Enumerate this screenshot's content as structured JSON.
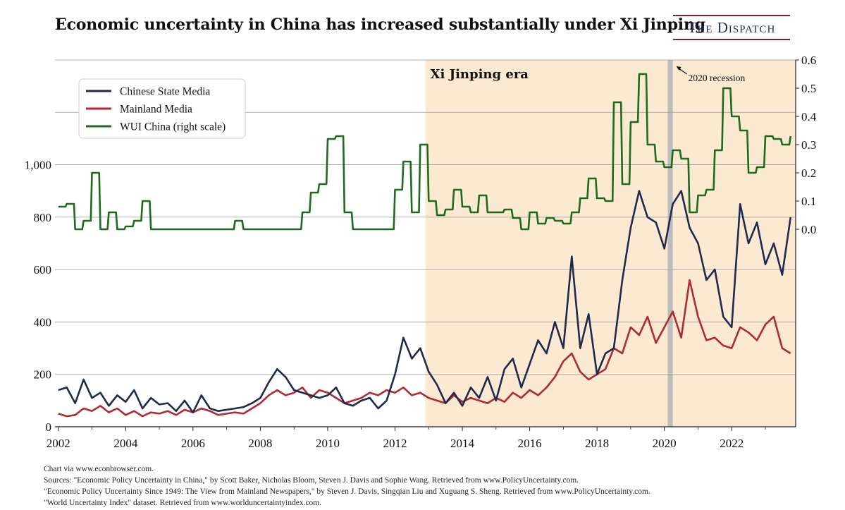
{
  "header": {
    "title": "Economic uncertainty in China has increased substantially under Xi Jinping",
    "brand": "The Dispatch"
  },
  "colors": {
    "state_media": "#1f2a4d",
    "mainland_media": "#b02a32",
    "wui": "#1e6b1e",
    "xi_era_shade": "#fbe9d2",
    "recession_shade": "#bdbdbd"
  },
  "chart_data": {
    "type": "line",
    "title": "Economic uncertainty in China has increased substantially under Xi Jinping",
    "x_ticks": [
      "2002",
      "2004",
      "2006",
      "2008",
      "2010",
      "2012",
      "2014",
      "2016",
      "2018",
      "2020",
      "2022"
    ],
    "x_tick_values": [
      2002,
      2004,
      2006,
      2008,
      2010,
      2012,
      2014,
      2016,
      2018,
      2020,
      2022
    ],
    "xlim": [
      2001.9,
      2023.9
    ],
    "left_axis": {
      "ticks": [
        "0",
        "200",
        "400",
        "600",
        "800",
        "1,000"
      ],
      "tick_values": [
        0,
        200,
        400,
        600,
        800,
        1000
      ],
      "ylim": [
        0,
        1400
      ]
    },
    "right_axis": {
      "ticks": [
        "0.0",
        "0.1",
        "0.2",
        "0.3",
        "0.4",
        "0.5",
        "0.6"
      ],
      "tick_values": [
        0.0,
        0.1,
        0.2,
        0.3,
        0.4,
        0.5,
        0.6
      ],
      "ylim": [
        -0.7,
        0.6
      ]
    },
    "legend": [
      "Chinese State Media",
      "Mainland Media",
      "WUI China (right scale)"
    ],
    "legend_position": "top-left",
    "annotations": {
      "xi_era": {
        "label": "Xi Jinping era",
        "start": 2012.9
      },
      "recession": {
        "label": "2020 recession",
        "start": 2020.1,
        "end": 2020.25
      }
    },
    "series": [
      {
        "name": "Chinese State Media",
        "axis": "left",
        "x": [
          2002.0,
          2002.25,
          2002.5,
          2002.75,
          2003.0,
          2003.25,
          2003.5,
          2003.75,
          2004.0,
          2004.25,
          2004.5,
          2004.75,
          2005.0,
          2005.25,
          2005.5,
          2005.75,
          2006.0,
          2006.25,
          2006.5,
          2006.75,
          2007.0,
          2007.25,
          2007.5,
          2007.75,
          2008.0,
          2008.25,
          2008.5,
          2008.75,
          2009.0,
          2009.25,
          2009.5,
          2009.75,
          2010.0,
          2010.25,
          2010.5,
          2010.75,
          2011.0,
          2011.25,
          2011.5,
          2011.75,
          2012.0,
          2012.25,
          2012.5,
          2012.75,
          2013.0,
          2013.25,
          2013.5,
          2013.75,
          2014.0,
          2014.25,
          2014.5,
          2014.75,
          2015.0,
          2015.25,
          2015.5,
          2015.75,
          2016.0,
          2016.25,
          2016.5,
          2016.75,
          2017.0,
          2017.25,
          2017.5,
          2017.75,
          2018.0,
          2018.25,
          2018.5,
          2018.75,
          2019.0,
          2019.25,
          2019.5,
          2019.75,
          2020.0,
          2020.25,
          2020.5,
          2020.75,
          2021.0,
          2021.25,
          2021.5,
          2021.75,
          2022.0,
          2022.25,
          2022.5,
          2022.75,
          2023.0,
          2023.25,
          2023.5,
          2023.75
        ],
        "values": [
          140,
          150,
          90,
          180,
          110,
          130,
          80,
          120,
          95,
          140,
          70,
          110,
          85,
          90,
          60,
          100,
          55,
          120,
          70,
          60,
          65,
          70,
          75,
          90,
          110,
          170,
          220,
          190,
          140,
          130,
          120,
          110,
          120,
          150,
          90,
          80,
          100,
          110,
          70,
          100,
          200,
          340,
          260,
          300,
          210,
          160,
          90,
          130,
          80,
          150,
          110,
          190,
          100,
          220,
          260,
          150,
          240,
          330,
          280,
          400,
          300,
          650,
          300,
          430,
          200,
          280,
          300,
          560,
          760,
          900,
          800,
          780,
          680,
          850,
          900,
          760,
          700,
          560,
          600,
          420,
          380,
          850,
          700,
          780,
          620,
          700,
          580,
          800
        ]
      },
      {
        "name": "Mainland Media",
        "axis": "left",
        "x": [
          2002.0,
          2002.25,
          2002.5,
          2002.75,
          2003.0,
          2003.25,
          2003.5,
          2003.75,
          2004.0,
          2004.25,
          2004.5,
          2004.75,
          2005.0,
          2005.25,
          2005.5,
          2005.75,
          2006.0,
          2006.25,
          2006.5,
          2006.75,
          2007.0,
          2007.25,
          2007.5,
          2007.75,
          2008.0,
          2008.25,
          2008.5,
          2008.75,
          2009.0,
          2009.25,
          2009.5,
          2009.75,
          2010.0,
          2010.25,
          2010.5,
          2010.75,
          2011.0,
          2011.25,
          2011.5,
          2011.75,
          2012.0,
          2012.25,
          2012.5,
          2012.75,
          2013.0,
          2013.25,
          2013.5,
          2013.75,
          2014.0,
          2014.25,
          2014.5,
          2014.75,
          2015.0,
          2015.25,
          2015.5,
          2015.75,
          2016.0,
          2016.25,
          2016.5,
          2016.75,
          2017.0,
          2017.25,
          2017.5,
          2017.75,
          2018.0,
          2018.25,
          2018.5,
          2018.75,
          2019.0,
          2019.25,
          2019.5,
          2019.75,
          2020.0,
          2020.25,
          2020.5,
          2020.75,
          2021.0,
          2021.25,
          2021.5,
          2021.75,
          2022.0,
          2022.25,
          2022.5,
          2022.75,
          2023.0,
          2023.25,
          2023.5,
          2023.75
        ],
        "values": [
          50,
          40,
          45,
          70,
          60,
          80,
          55,
          70,
          45,
          60,
          40,
          55,
          50,
          60,
          45,
          65,
          55,
          70,
          60,
          45,
          50,
          55,
          50,
          70,
          90,
          120,
          140,
          120,
          130,
          150,
          110,
          140,
          130,
          110,
          90,
          100,
          110,
          130,
          120,
          140,
          130,
          150,
          120,
          130,
          110,
          100,
          90,
          120,
          95,
          110,
          100,
          90,
          110,
          95,
          130,
          110,
          140,
          120,
          150,
          190,
          250,
          280,
          210,
          180,
          200,
          220,
          300,
          280,
          380,
          350,
          420,
          320,
          380,
          440,
          340,
          560,
          420,
          330,
          340,
          310,
          300,
          380,
          360,
          330,
          390,
          420,
          300,
          280
        ]
      },
      {
        "name": "WUI China (right scale)",
        "axis": "right",
        "x": [
          2002.0,
          2002.25,
          2002.5,
          2002.75,
          2003.0,
          2003.25,
          2003.5,
          2003.75,
          2004.0,
          2004.25,
          2004.5,
          2004.75,
          2005.0,
          2005.25,
          2005.5,
          2005.75,
          2006.0,
          2006.25,
          2006.5,
          2006.75,
          2007.0,
          2007.25,
          2007.5,
          2007.75,
          2008.0,
          2008.25,
          2008.5,
          2008.75,
          2009.0,
          2009.25,
          2009.5,
          2009.75,
          2010.0,
          2010.25,
          2010.5,
          2010.75,
          2011.0,
          2011.25,
          2011.5,
          2011.75,
          2012.0,
          2012.25,
          2012.5,
          2012.75,
          2013.0,
          2013.25,
          2013.5,
          2013.75,
          2014.0,
          2014.25,
          2014.5,
          2014.75,
          2015.0,
          2015.25,
          2015.5,
          2015.75,
          2016.0,
          2016.25,
          2016.5,
          2016.75,
          2017.0,
          2017.25,
          2017.5,
          2017.75,
          2018.0,
          2018.25,
          2018.5,
          2018.75,
          2019.0,
          2019.25,
          2019.5,
          2019.75,
          2020.0,
          2020.25,
          2020.5,
          2020.75,
          2021.0,
          2021.25,
          2021.5,
          2021.75,
          2022.0,
          2022.25,
          2022.5,
          2022.75,
          2023.0,
          2023.25,
          2023.5,
          2023.75
        ],
        "values": [
          0.08,
          0.09,
          0.0,
          0.03,
          0.2,
          0.0,
          0.06,
          0.0,
          0.01,
          0.03,
          0.1,
          0.0,
          0.0,
          0.0,
          0.0,
          0.0,
          0.0,
          0.0,
          0.0,
          0.0,
          0.0,
          0.03,
          0.0,
          0.0,
          0.0,
          0.0,
          0.0,
          0.0,
          0.0,
          0.06,
          0.13,
          0.16,
          0.32,
          0.33,
          0.06,
          0.0,
          0.0,
          0.0,
          0.0,
          0.0,
          0.14,
          0.24,
          0.06,
          0.3,
          0.1,
          0.05,
          0.07,
          0.14,
          0.08,
          0.06,
          0.12,
          0.06,
          0.06,
          0.07,
          0.04,
          0.0,
          0.06,
          0.02,
          0.04,
          0.03,
          0.02,
          0.06,
          0.11,
          0.18,
          0.11,
          0.1,
          0.45,
          0.16,
          0.38,
          0.55,
          0.3,
          0.24,
          0.22,
          0.28,
          0.25,
          0.06,
          0.12,
          0.14,
          0.28,
          0.5,
          0.4,
          0.35,
          0.2,
          0.22,
          0.33,
          0.32,
          0.3,
          0.33
        ]
      }
    ]
  },
  "footer": {
    "line1": "Chart via www.econbrowser.com.",
    "line2": "Sources: \"Economic Policy Uncertainty in China,\" by Scott Baker, Nicholas Bloom, Steven J. Davis and Sophie Wang. Retrieved from www.PolicyUncertainty.com.",
    "line3": "\"Economic Policy Uncertainty Since 1949: The View from Mainland Newspapers,\" by Steven J. Davis, Singqian Liu and Xuguang S. Sheng. Retrieved from www.PolicyUncertainty.com.",
    "line4": "\"World Uncertainty Index\" dataset. Retrieved from www.worlduncertaintyindex.com."
  }
}
